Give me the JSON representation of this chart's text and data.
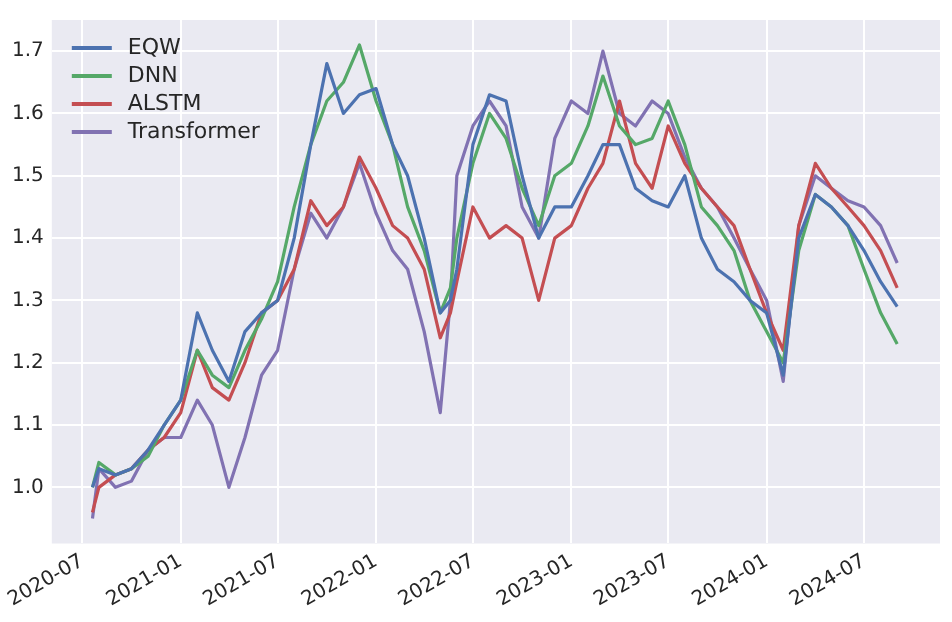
{
  "chart_data": {
    "type": "line",
    "x": [
      "2020-07-20",
      "2020-08",
      "2020-09",
      "2020-10",
      "2020-11",
      "2020-12",
      "2021-01",
      "2021-02",
      "2021-03",
      "2021-04",
      "2021-05",
      "2021-06",
      "2021-07",
      "2021-08",
      "2021-09",
      "2021-10",
      "2021-11",
      "2021-12",
      "2022-01",
      "2022-02",
      "2022-03",
      "2022-04",
      "2022-05",
      "2022-05-20",
      "2022-06",
      "2022-07",
      "2022-08",
      "2022-09",
      "2022-10",
      "2022-11",
      "2022-12",
      "2023-01",
      "2023-02",
      "2023-03",
      "2023-04",
      "2023-05",
      "2023-06",
      "2023-07",
      "2023-08",
      "2023-09",
      "2023-10",
      "2023-11",
      "2023-12",
      "2024-01",
      "2024-02",
      "2024-03",
      "2024-04",
      "2024-05",
      "2024-06",
      "2024-07",
      "2024-08",
      "2024-09"
    ],
    "series": [
      {
        "name": "EQW",
        "color": "#4c72b0",
        "values": [
          1.0,
          1.03,
          1.02,
          1.03,
          1.06,
          1.1,
          1.14,
          1.28,
          1.22,
          1.17,
          1.25,
          1.28,
          1.3,
          1.4,
          1.55,
          1.68,
          1.6,
          1.63,
          1.64,
          1.55,
          1.5,
          1.4,
          1.28,
          1.3,
          1.35,
          1.55,
          1.63,
          1.62,
          1.5,
          1.4,
          1.45,
          1.45,
          1.5,
          1.55,
          1.55,
          1.48,
          1.46,
          1.45,
          1.5,
          1.4,
          1.35,
          1.33,
          1.3,
          1.28,
          1.18,
          1.4,
          1.47,
          1.45,
          1.42,
          1.38,
          1.33,
          1.29
        ]
      },
      {
        "name": "DNN",
        "color": "#55a868",
        "values": [
          1.0,
          1.04,
          1.02,
          1.03,
          1.05,
          1.1,
          1.14,
          1.22,
          1.18,
          1.16,
          1.22,
          1.27,
          1.33,
          1.45,
          1.55,
          1.62,
          1.65,
          1.71,
          1.62,
          1.55,
          1.45,
          1.38,
          1.28,
          1.32,
          1.4,
          1.52,
          1.6,
          1.56,
          1.48,
          1.42,
          1.5,
          1.52,
          1.58,
          1.66,
          1.58,
          1.55,
          1.56,
          1.62,
          1.55,
          1.45,
          1.42,
          1.38,
          1.3,
          1.25,
          1.2,
          1.38,
          1.47,
          1.45,
          1.42,
          1.35,
          1.28,
          1.23
        ]
      },
      {
        "name": "ALSTM",
        "color": "#c44e52",
        "values": [
          0.96,
          1.0,
          1.02,
          1.03,
          1.06,
          1.08,
          1.12,
          1.22,
          1.16,
          1.14,
          1.2,
          1.28,
          1.3,
          1.35,
          1.46,
          1.42,
          1.45,
          1.53,
          1.48,
          1.42,
          1.4,
          1.35,
          1.24,
          1.28,
          1.33,
          1.45,
          1.4,
          1.42,
          1.4,
          1.3,
          1.4,
          1.42,
          1.48,
          1.52,
          1.62,
          1.52,
          1.48,
          1.58,
          1.52,
          1.48,
          1.45,
          1.42,
          1.35,
          1.28,
          1.22,
          1.42,
          1.52,
          1.48,
          1.45,
          1.42,
          1.38,
          1.32
        ]
      },
      {
        "name": "Transformer",
        "color": "#8172b2",
        "values": [
          0.95,
          1.03,
          1.0,
          1.01,
          1.06,
          1.08,
          1.08,
          1.14,
          1.1,
          1.0,
          1.08,
          1.18,
          1.22,
          1.35,
          1.44,
          1.4,
          1.45,
          1.52,
          1.44,
          1.38,
          1.35,
          1.25,
          1.12,
          1.3,
          1.5,
          1.58,
          1.62,
          1.58,
          1.45,
          1.4,
          1.56,
          1.62,
          1.6,
          1.7,
          1.6,
          1.58,
          1.62,
          1.6,
          1.53,
          1.48,
          1.45,
          1.4,
          1.35,
          1.3,
          1.17,
          1.42,
          1.5,
          1.48,
          1.46,
          1.45,
          1.42,
          1.36
        ]
      }
    ],
    "xlim": [
      "2020-05-05",
      "2024-11-20"
    ],
    "xticks": [
      "2020-07",
      "2021-01",
      "2021-07",
      "2022-01",
      "2022-07",
      "2023-01",
      "2023-07",
      "2024-01",
      "2024-07"
    ],
    "ylim": [
      0.91,
      1.75
    ],
    "yticks": [
      {
        "value": 1.0,
        "label": "1.0"
      },
      1.1,
      1.2,
      1.3,
      1.4,
      1.5,
      1.6,
      1.7
    ],
    "grid": true,
    "legend": "top left",
    "marker": "none",
    "line_style": "solid"
  }
}
